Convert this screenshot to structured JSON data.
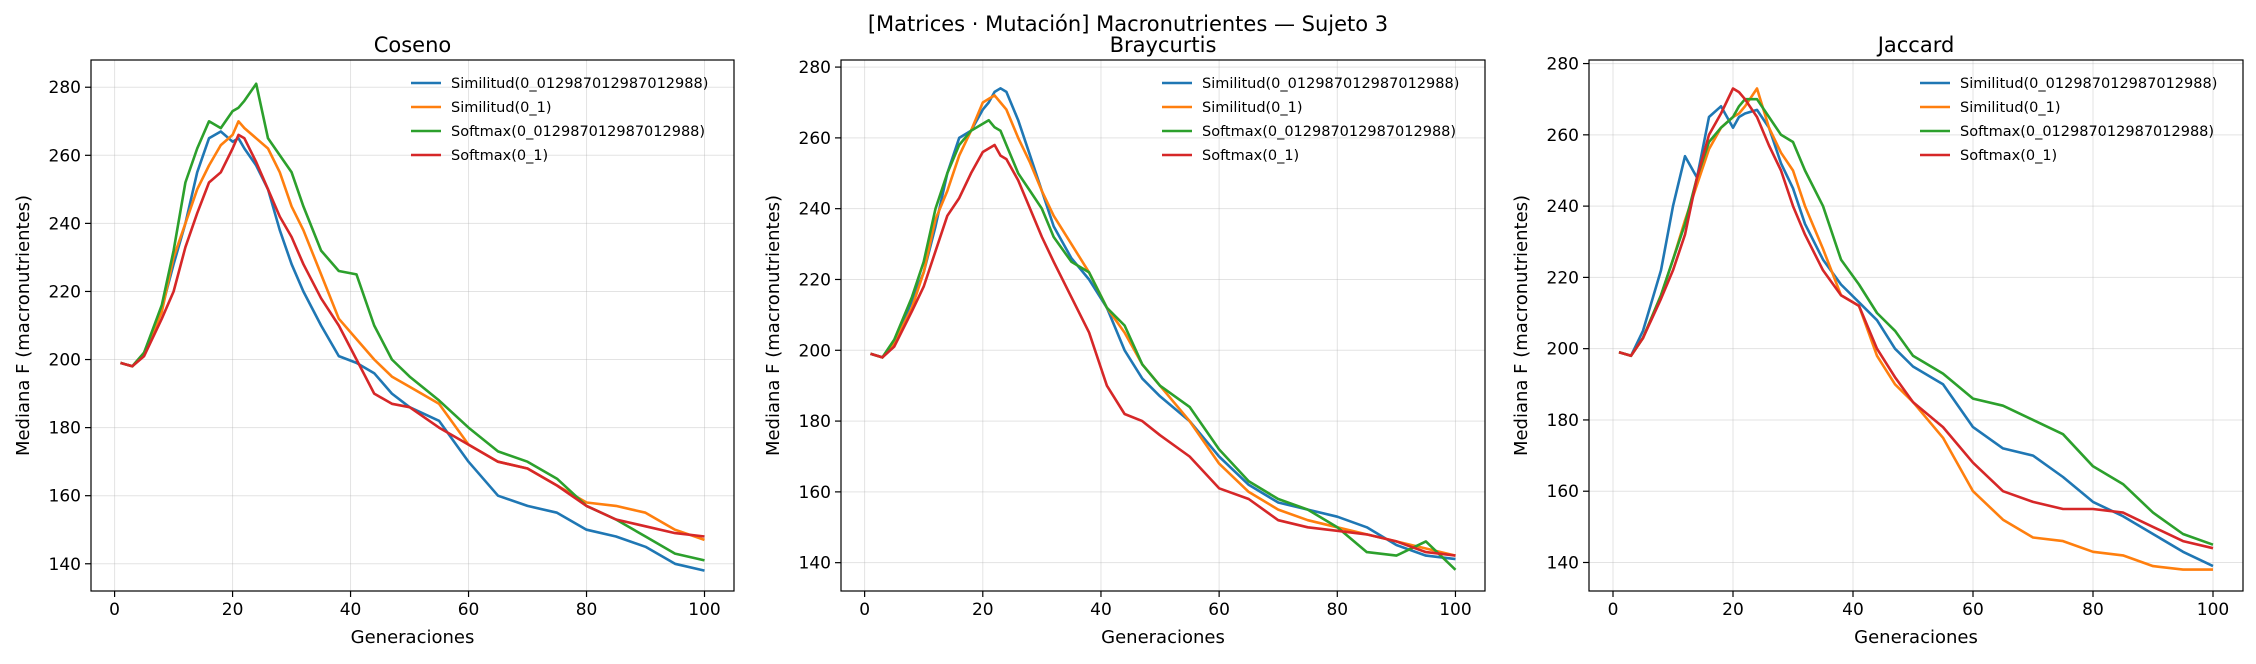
{
  "figure": {
    "suptitle": "[Matrices · Mutación] Macronutrientes — Sujeto 3"
  },
  "chart_data": [
    {
      "type": "line",
      "title": "Coseno",
      "xlabel": "Generaciones",
      "ylabel": "Mediana F (macronutrientes)",
      "xlim": [
        -4,
        105
      ],
      "ylim": [
        132,
        288
      ],
      "xticks": [
        0,
        20,
        40,
        60,
        80,
        100
      ],
      "yticks": [
        140,
        160,
        180,
        200,
        220,
        240,
        260,
        280
      ],
      "grid": true,
      "legend": "top-right",
      "series": [
        {
          "name": "Similitud(0_012987012987012988)",
          "color": "#1f77b4",
          "x": [
            1,
            3,
            5,
            8,
            10,
            12,
            14,
            16,
            18,
            20,
            21,
            22,
            24,
            26,
            28,
            30,
            32,
            35,
            38,
            41,
            44,
            47,
            50,
            55,
            60,
            65,
            70,
            75,
            80,
            85,
            90,
            95,
            100
          ],
          "values": [
            199,
            198,
            202,
            215,
            228,
            240,
            255,
            265,
            267,
            264,
            265,
            262,
            257,
            250,
            238,
            228,
            220,
            210,
            201,
            199,
            196,
            190,
            186,
            182,
            170,
            160,
            157,
            155,
            150,
            148,
            145,
            140,
            138
          ]
        },
        {
          "name": "Similitud(0_1)",
          "color": "#ff7f0e",
          "x": [
            1,
            3,
            5,
            8,
            10,
            12,
            14,
            16,
            18,
            20,
            21,
            22,
            24,
            26,
            28,
            30,
            32,
            35,
            38,
            41,
            44,
            47,
            50,
            55,
            60,
            65,
            70,
            75,
            80,
            85,
            90,
            95,
            100
          ],
          "values": [
            199,
            198,
            202,
            214,
            230,
            240,
            250,
            257,
            263,
            266,
            270,
            268,
            265,
            262,
            255,
            245,
            238,
            225,
            212,
            206,
            200,
            195,
            192,
            187,
            175,
            170,
            168,
            163,
            158,
            157,
            155,
            150,
            147
          ]
        },
        {
          "name": "Softmax(0_012987012987012988)",
          "color": "#2ca02c",
          "x": [
            1,
            3,
            5,
            8,
            10,
            12,
            14,
            16,
            18,
            20,
            21,
            22,
            24,
            26,
            28,
            30,
            32,
            35,
            38,
            41,
            44,
            47,
            50,
            55,
            60,
            65,
            70,
            75,
            80,
            85,
            90,
            95,
            100
          ],
          "values": [
            199,
            198,
            202,
            216,
            232,
            252,
            262,
            270,
            268,
            273,
            274,
            276,
            281,
            265,
            260,
            255,
            245,
            232,
            226,
            225,
            210,
            200,
            195,
            188,
            180,
            173,
            170,
            165,
            157,
            153,
            148,
            143,
            141
          ]
        },
        {
          "name": "Softmax(0_1)",
          "color": "#d62728",
          "x": [
            1,
            3,
            5,
            8,
            10,
            12,
            14,
            16,
            18,
            20,
            21,
            22,
            24,
            26,
            28,
            30,
            32,
            35,
            38,
            41,
            44,
            47,
            50,
            55,
            60,
            65,
            70,
            75,
            80,
            85,
            90,
            95,
            100
          ],
          "values": [
            199,
            198,
            201,
            212,
            220,
            233,
            243,
            252,
            255,
            262,
            266,
            265,
            258,
            250,
            242,
            236,
            228,
            218,
            210,
            200,
            190,
            187,
            186,
            180,
            175,
            170,
            168,
            163,
            157,
            153,
            151,
            149,
            148
          ]
        }
      ]
    },
    {
      "type": "line",
      "title": "Braycurtis",
      "xlabel": "Generaciones",
      "ylabel": "Mediana F (macronutrientes)",
      "xlim": [
        -4,
        105
      ],
      "ylim": [
        132,
        282
      ],
      "xticks": [
        0,
        20,
        40,
        60,
        80,
        100
      ],
      "yticks": [
        140,
        160,
        180,
        200,
        220,
        240,
        260,
        280
      ],
      "grid": true,
      "legend": "top-right",
      "series": [
        {
          "name": "Similitud(0_012987012987012988)",
          "color": "#1f77b4",
          "x": [
            1,
            3,
            5,
            8,
            10,
            12,
            14,
            16,
            18,
            20,
            21,
            22,
            23,
            24,
            26,
            28,
            30,
            32,
            35,
            38,
            41,
            44,
            47,
            50,
            55,
            60,
            65,
            70,
            75,
            80,
            85,
            90,
            95,
            100
          ],
          "values": [
            199,
            198,
            202,
            214,
            222,
            235,
            250,
            260,
            262,
            268,
            270,
            273,
            274,
            273,
            265,
            255,
            245,
            235,
            226,
            220,
            212,
            200,
            192,
            187,
            180,
            170,
            162,
            157,
            155,
            153,
            150,
            145,
            142,
            141
          ]
        },
        {
          "name": "Similitud(0_1)",
          "color": "#ff7f0e",
          "x": [
            1,
            3,
            5,
            8,
            10,
            12,
            14,
            16,
            18,
            20,
            21,
            22,
            23,
            24,
            26,
            28,
            30,
            32,
            35,
            38,
            41,
            44,
            47,
            50,
            55,
            60,
            65,
            70,
            75,
            80,
            85,
            90,
            95,
            100
          ],
          "values": [
            199,
            198,
            202,
            212,
            222,
            237,
            245,
            255,
            262,
            270,
            271,
            272,
            270,
            268,
            260,
            253,
            245,
            238,
            230,
            222,
            212,
            205,
            196,
            190,
            180,
            168,
            160,
            155,
            152,
            150,
            148,
            146,
            144,
            142
          ]
        },
        {
          "name": "Softmax(0_012987012987012988)",
          "color": "#2ca02c",
          "x": [
            1,
            3,
            5,
            8,
            10,
            12,
            14,
            16,
            18,
            20,
            21,
            22,
            23,
            24,
            26,
            28,
            30,
            32,
            35,
            38,
            41,
            44,
            47,
            50,
            55,
            60,
            65,
            70,
            75,
            80,
            85,
            90,
            95,
            100
          ],
          "values": [
            199,
            198,
            203,
            215,
            225,
            240,
            250,
            258,
            262,
            264,
            265,
            263,
            262,
            258,
            250,
            245,
            240,
            232,
            225,
            222,
            212,
            207,
            196,
            190,
            184,
            172,
            163,
            158,
            155,
            150,
            143,
            142,
            146,
            138
          ]
        },
        {
          "name": "Softmax(0_1)",
          "color": "#d62728",
          "x": [
            1,
            3,
            5,
            8,
            10,
            12,
            14,
            16,
            18,
            20,
            21,
            22,
            23,
            24,
            26,
            28,
            30,
            32,
            35,
            38,
            41,
            44,
            47,
            50,
            55,
            60,
            65,
            70,
            75,
            80,
            85,
            90,
            95,
            100
          ],
          "values": [
            199,
            198,
            201,
            211,
            218,
            228,
            238,
            243,
            250,
            256,
            257,
            258,
            255,
            254,
            248,
            240,
            232,
            225,
            215,
            205,
            190,
            182,
            180,
            176,
            170,
            161,
            158,
            152,
            150,
            149,
            148,
            146,
            143,
            142
          ]
        }
      ]
    },
    {
      "type": "line",
      "title": "Jaccard",
      "xlabel": "Generaciones",
      "ylabel": "Mediana F (macronutrientes)",
      "xlim": [
        -4,
        105
      ],
      "ylim": [
        132,
        281
      ],
      "xticks": [
        0,
        20,
        40,
        60,
        80,
        100
      ],
      "yticks": [
        140,
        160,
        180,
        200,
        220,
        240,
        260,
        280
      ],
      "grid": true,
      "legend": "top-right",
      "series": [
        {
          "name": "Similitud(0_012987012987012988)",
          "color": "#1f77b4",
          "x": [
            1,
            3,
            5,
            8,
            10,
            12,
            14,
            16,
            18,
            20,
            21,
            22,
            24,
            26,
            28,
            30,
            32,
            35,
            38,
            41,
            44,
            47,
            50,
            55,
            60,
            65,
            70,
            75,
            80,
            85,
            90,
            95,
            100
          ],
          "values": [
            199,
            198,
            205,
            222,
            240,
            254,
            248,
            265,
            268,
            262,
            265,
            266,
            267,
            262,
            252,
            245,
            235,
            225,
            218,
            213,
            208,
            200,
            195,
            190,
            178,
            172,
            170,
            164,
            157,
            153,
            148,
            143,
            139
          ]
        },
        {
          "name": "Similitud(0_1)",
          "color": "#ff7f0e",
          "x": [
            1,
            3,
            5,
            8,
            10,
            12,
            14,
            16,
            18,
            20,
            21,
            22,
            24,
            26,
            28,
            30,
            32,
            35,
            38,
            41,
            44,
            47,
            50,
            55,
            60,
            65,
            70,
            75,
            80,
            85,
            90,
            95,
            100
          ],
          "values": [
            199,
            198,
            203,
            215,
            225,
            236,
            246,
            256,
            262,
            265,
            266,
            268,
            273,
            262,
            255,
            250,
            240,
            228,
            215,
            212,
            198,
            190,
            185,
            175,
            160,
            152,
            147,
            146,
            143,
            142,
            139,
            138,
            138
          ]
        },
        {
          "name": "Softmax(0_012987012987012988)",
          "color": "#2ca02c",
          "x": [
            1,
            3,
            5,
            8,
            10,
            12,
            14,
            16,
            18,
            20,
            21,
            22,
            24,
            26,
            28,
            30,
            32,
            35,
            38,
            41,
            44,
            47,
            50,
            55,
            60,
            65,
            70,
            75,
            80,
            85,
            90,
            95,
            100
          ],
          "values": [
            199,
            198,
            203,
            215,
            225,
            235,
            248,
            258,
            262,
            265,
            268,
            270,
            270,
            265,
            260,
            258,
            250,
            240,
            225,
            218,
            210,
            205,
            198,
            193,
            186,
            184,
            180,
            176,
            167,
            162,
            154,
            148,
            145
          ]
        },
        {
          "name": "Softmax(0_1)",
          "color": "#d62728",
          "x": [
            1,
            3,
            5,
            8,
            10,
            12,
            14,
            16,
            18,
            20,
            21,
            22,
            24,
            26,
            28,
            30,
            32,
            35,
            38,
            41,
            44,
            47,
            50,
            55,
            60,
            65,
            70,
            75,
            80,
            85,
            90,
            95,
            100
          ],
          "values": [
            199,
            198,
            203,
            214,
            222,
            232,
            248,
            260,
            266,
            273,
            272,
            270,
            265,
            257,
            250,
            240,
            232,
            222,
            215,
            212,
            200,
            192,
            185,
            178,
            168,
            160,
            157,
            155,
            155,
            154,
            150,
            146,
            144
          ]
        }
      ]
    }
  ]
}
